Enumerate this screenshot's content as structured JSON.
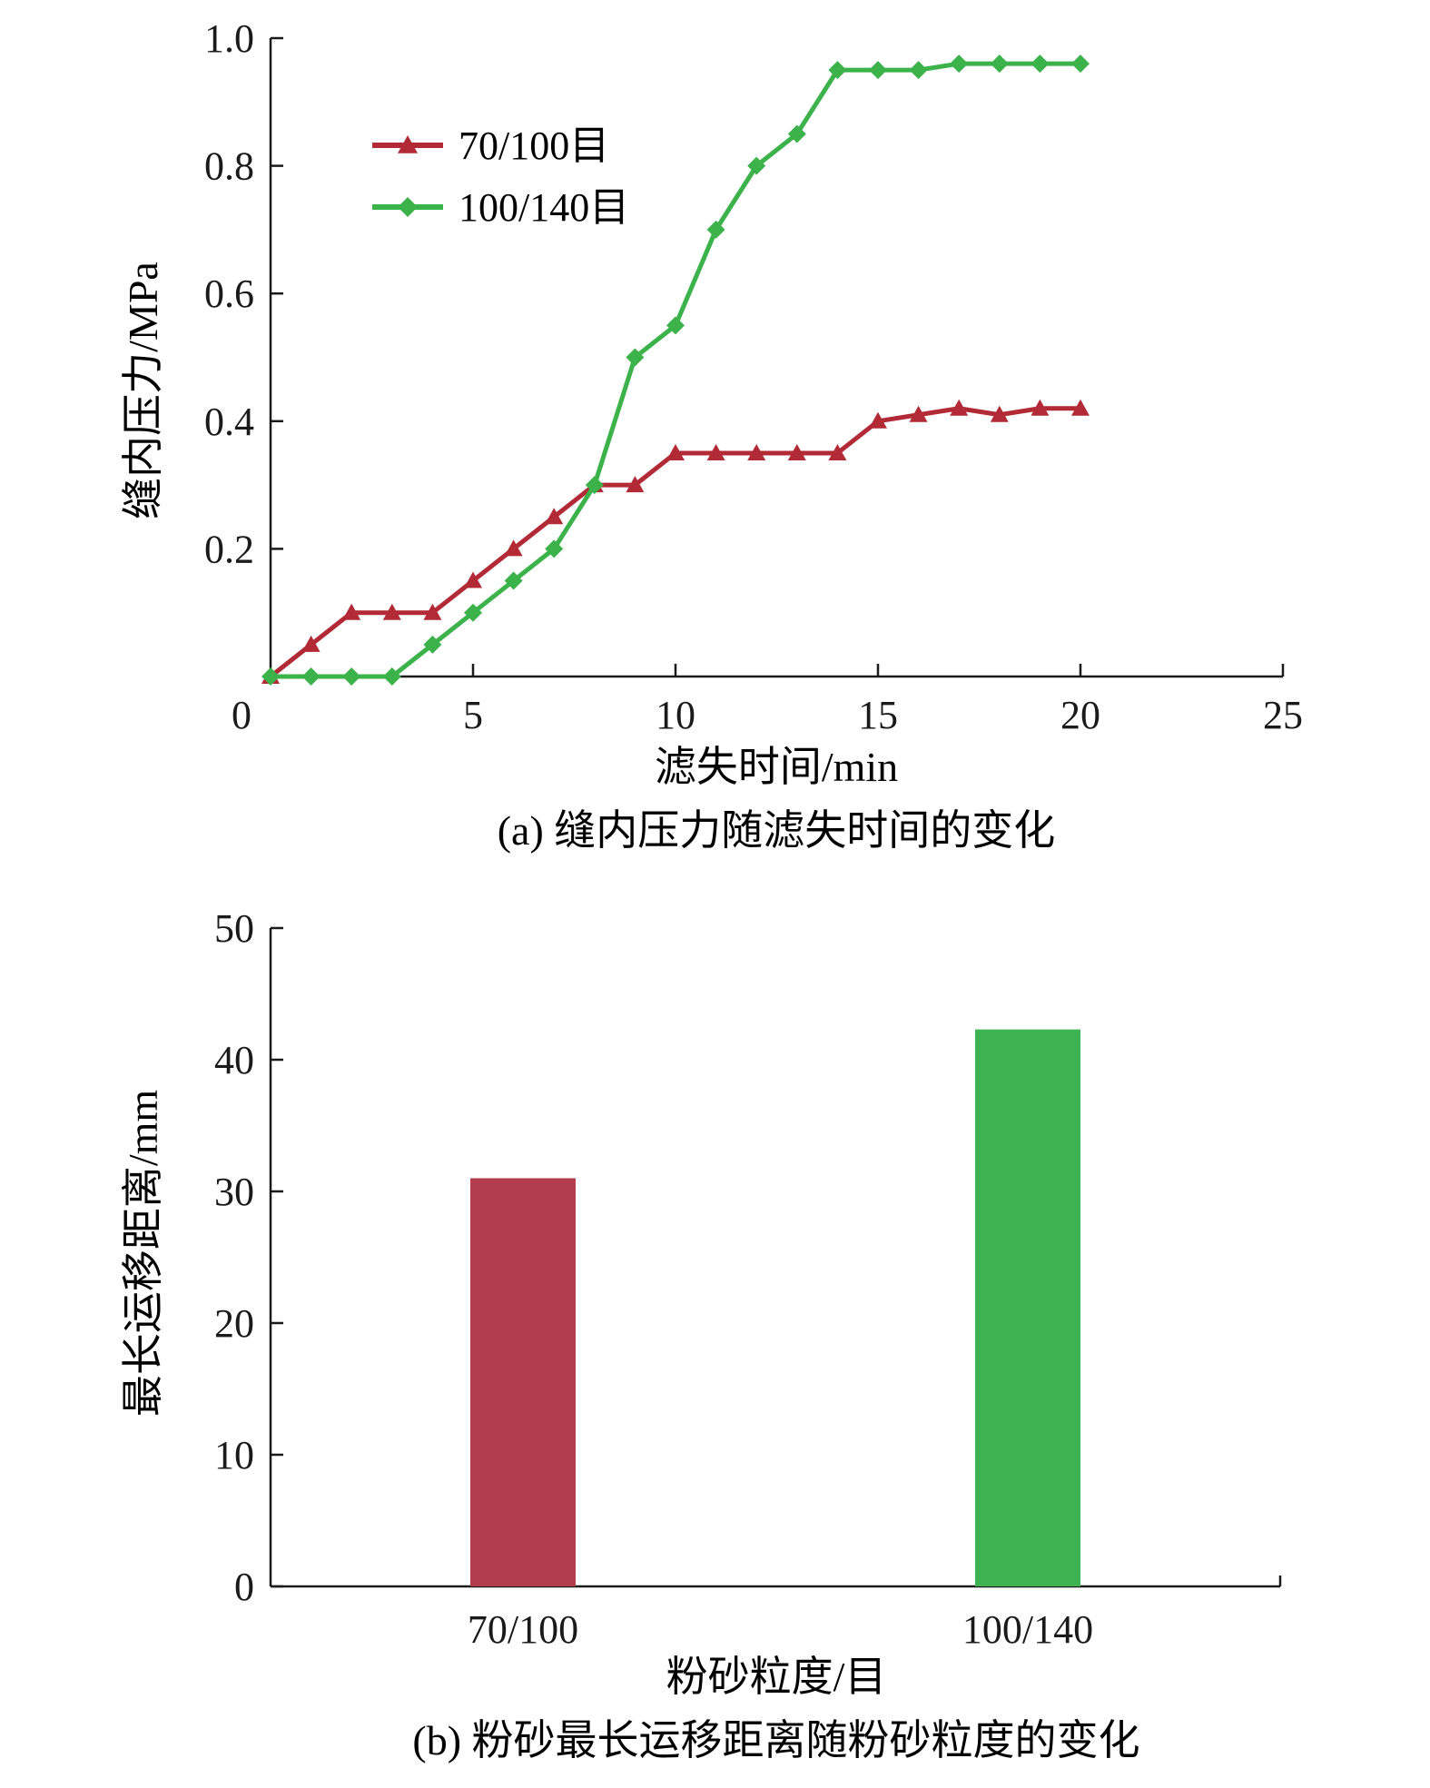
{
  "colors": {
    "red": "#b22a35",
    "green": "#3bb34a",
    "red_bar": "#b23e4d",
    "green_bar": "#3db352",
    "axis": "#1a1a1a"
  },
  "chart_data": [
    {
      "type": "line",
      "xlabel": "滤失时间/min",
      "ylabel": "缝内压力/MPa",
      "caption": "(a) 缝内压力随滤失时间的变化",
      "xlim": [
        0,
        25
      ],
      "ylim": [
        0,
        1.0
      ],
      "xticks": [
        0,
        5,
        10,
        15,
        20,
        25
      ],
      "xtick_labels": [
        "0",
        "5",
        "10",
        "15",
        "20",
        "25"
      ],
      "yticks": [
        0.2,
        0.4,
        0.6,
        0.8,
        1.0
      ],
      "ytick_labels": [
        "0.2",
        "0.4",
        "0.6",
        "0.8",
        "1.0"
      ],
      "legend_position": "top-left",
      "series": [
        {
          "name": "70/100目",
          "color": "#b22a35",
          "marker": "triangle",
          "x": [
            0,
            1,
            2,
            3,
            4,
            5,
            6,
            7,
            8,
            9,
            10,
            11,
            12,
            13,
            14,
            15,
            16,
            17,
            18,
            19,
            20
          ],
          "y": [
            0,
            0.05,
            0.1,
            0.1,
            0.1,
            0.15,
            0.2,
            0.25,
            0.3,
            0.3,
            0.35,
            0.35,
            0.35,
            0.35,
            0.35,
            0.4,
            0.41,
            0.42,
            0.41,
            0.42,
            0.42
          ]
        },
        {
          "name": "100/140目",
          "color": "#3bb34a",
          "marker": "diamond",
          "x": [
            0,
            1,
            2,
            3,
            4,
            5,
            6,
            7,
            8,
            9,
            10,
            11,
            12,
            13,
            14,
            15,
            16,
            17,
            18,
            19,
            20
          ],
          "y": [
            0,
            0,
            0,
            0,
            0.05,
            0.1,
            0.15,
            0.2,
            0.3,
            0.5,
            0.55,
            0.7,
            0.8,
            0.85,
            0.95,
            0.95,
            0.95,
            0.96,
            0.96,
            0.96,
            0.96
          ]
        }
      ]
    },
    {
      "type": "bar",
      "xlabel": "粉砂粒度/目",
      "ylabel": "最长运移距离/mm",
      "caption": "(b) 粉砂最长运移距离随粉砂粒度的变化",
      "categories": [
        "70/100",
        "100/140"
      ],
      "values": [
        31,
        42.3
      ],
      "bar_colors": [
        "#b23e4d",
        "#3db352"
      ],
      "ylim": [
        0,
        50
      ],
      "yticks": [
        0,
        10,
        20,
        30,
        40,
        50
      ],
      "ytick_labels": [
        "0",
        "10",
        "20",
        "30",
        "40",
        "50"
      ]
    }
  ]
}
